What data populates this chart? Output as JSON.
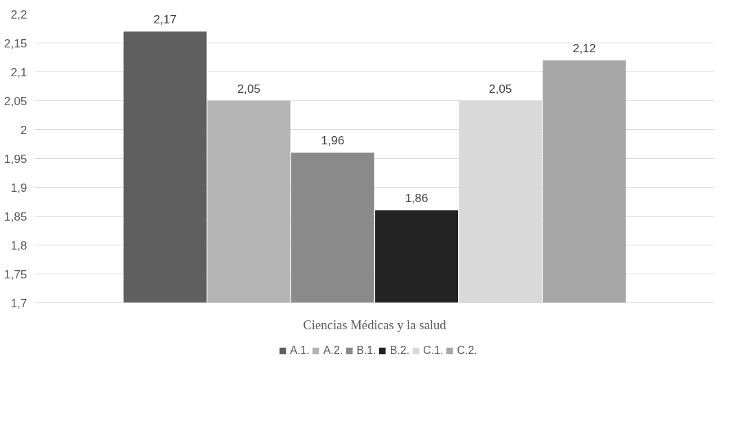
{
  "chart_data": {
    "type": "bar",
    "categories": [
      "Ciencias Médicas y la salud"
    ],
    "series": [
      {
        "name": "A.1.",
        "color": "#5f5f5f",
        "values": [
          2.17
        ],
        "value_labels": [
          "2,17"
        ]
      },
      {
        "name": "A.2.",
        "color": "#b4b4b4",
        "values": [
          2.05
        ],
        "value_labels": [
          "2,05"
        ]
      },
      {
        "name": "B.1.",
        "color": "#8a8a8a",
        "values": [
          1.96
        ],
        "value_labels": [
          "1,96"
        ]
      },
      {
        "name": "B.2.",
        "color": "#232323",
        "values": [
          1.86
        ],
        "value_labels": [
          "1,86"
        ]
      },
      {
        "name": "C.1.",
        "color": "#d9d9d9",
        "values": [
          2.05
        ],
        "value_labels": [
          "2,05"
        ]
      },
      {
        "name": "C.2.",
        "color": "#a6a6a6",
        "values": [
          2.12
        ],
        "value_labels": [
          "2,12"
        ]
      }
    ],
    "ylim": [
      1.7,
      2.2
    ],
    "yticks": [
      {
        "value": 1.7,
        "label": "1,7"
      },
      {
        "value": 1.75,
        "label": "1,75"
      },
      {
        "value": 1.8,
        "label": "1,8"
      },
      {
        "value": 1.85,
        "label": "1,85"
      },
      {
        "value": 1.9,
        "label": "1,9"
      },
      {
        "value": 1.95,
        "label": "1,95"
      },
      {
        "value": 2,
        "label": "2"
      },
      {
        "value": 2.05,
        "label": "2,05"
      },
      {
        "value": 2.1,
        "label": "2,1"
      },
      {
        "value": 2.15,
        "label": "2,15"
      },
      {
        "value": 2.2,
        "label": "2,2"
      }
    ],
    "grid": "y",
    "legend": "bottom"
  }
}
